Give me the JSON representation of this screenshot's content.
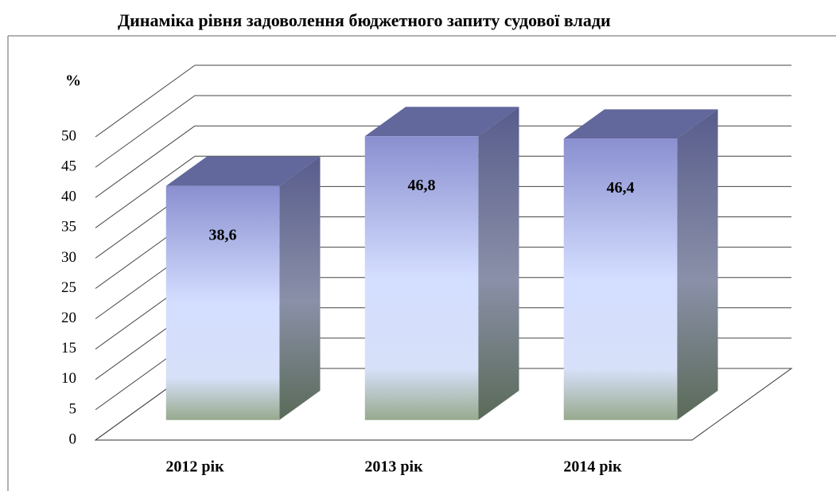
{
  "chart_data": {
    "type": "bar3d",
    "title": "Динаміка рівня задоволення бюджетного запиту судової влади",
    "y_label": "%",
    "categories": [
      "2012 рік",
      "2013 рік",
      "2014 рік"
    ],
    "values": [
      38.6,
      46.8,
      46.4
    ],
    "value_labels": [
      "38,6",
      "46,8",
      "46,4"
    ],
    "ylim": [
      0,
      50
    ],
    "yticks": [
      0,
      5,
      10,
      15,
      20,
      25,
      30,
      35,
      40,
      45,
      50
    ],
    "grid": true
  }
}
